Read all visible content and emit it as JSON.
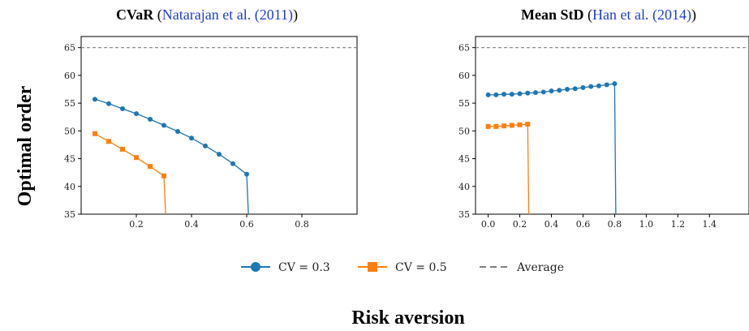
{
  "figure": {
    "ylabel": "Optimal order",
    "xlabel": "Risk aversion"
  },
  "legend": {
    "items": [
      {
        "label": "CV = 0.3",
        "color": "#1f77b4",
        "marker": "circle",
        "style": "solid"
      },
      {
        "label": "CV = 0.5",
        "color": "#ff7f0e",
        "marker": "square",
        "style": "solid"
      },
      {
        "label": "Average",
        "color": "#808080",
        "marker": "none",
        "style": "dashed"
      }
    ]
  },
  "chart_data": [
    {
      "type": "line",
      "title_bold": "CVaR",
      "title_cite_open": "(",
      "title_cite": "Natarajan et al. (2011)",
      "title_cite_close": ")",
      "xlim": [
        0.0,
        1.0
      ],
      "ylim": [
        35,
        67
      ],
      "xticks": [
        0.2,
        0.4,
        0.6,
        0.8
      ],
      "xtick_labels": [
        "0.2",
        "0.4",
        "0.6",
        "0.8"
      ],
      "yticks": [
        35,
        40,
        45,
        50,
        55,
        60,
        65
      ],
      "ytick_labels": [
        "35",
        "40",
        "45",
        "50",
        "55",
        "60",
        "65"
      ],
      "reference_line": {
        "name": "Average",
        "y": 65
      },
      "series": [
        {
          "name": "CV = 0.3",
          "color": "#1f77b4",
          "marker": "circle",
          "x": [
            0.05,
            0.1,
            0.15,
            0.2,
            0.25,
            0.3,
            0.35,
            0.4,
            0.45,
            0.5,
            0.55,
            0.6
          ],
          "y": [
            55.7,
            54.9,
            54.0,
            53.1,
            52.1,
            51.0,
            49.9,
            48.7,
            47.3,
            45.8,
            44.1,
            42.2
          ],
          "drop_to": 35
        },
        {
          "name": "CV = 0.5",
          "color": "#ff7f0e",
          "marker": "square",
          "x": [
            0.05,
            0.1,
            0.15,
            0.2,
            0.25,
            0.3
          ],
          "y": [
            49.5,
            48.1,
            46.7,
            45.2,
            43.6,
            41.9
          ],
          "drop_to": 35
        }
      ]
    },
    {
      "type": "line",
      "title_bold": "Mean StD",
      "title_cite_open": "(",
      "title_cite": "Han et al. (2014)",
      "title_cite_close": ")",
      "xlim": [
        -0.08,
        1.65
      ],
      "ylim": [
        35,
        67
      ],
      "xticks": [
        0.0,
        0.2,
        0.4,
        0.6,
        0.8,
        1.0,
        1.2,
        1.4
      ],
      "xtick_labels": [
        "0.0",
        "0.2",
        "0.4",
        "0.6",
        "0.8",
        "1.0",
        "1.2",
        "1.4"
      ],
      "yticks": [
        35,
        40,
        45,
        50,
        55,
        60,
        65
      ],
      "ytick_labels": [
        "35",
        "40",
        "45",
        "50",
        "55",
        "60",
        "65"
      ],
      "reference_line": {
        "name": "Average",
        "y": 65
      },
      "series": [
        {
          "name": "CV = 0.3",
          "color": "#1f77b4",
          "marker": "circle",
          "x": [
            0.0,
            0.05,
            0.1,
            0.15,
            0.2,
            0.25,
            0.3,
            0.35,
            0.4,
            0.45,
            0.5,
            0.55,
            0.6,
            0.65,
            0.7,
            0.75,
            0.8
          ],
          "y": [
            56.5,
            56.5,
            56.6,
            56.6,
            56.7,
            56.8,
            56.9,
            57.0,
            57.2,
            57.3,
            57.5,
            57.6,
            57.8,
            58.0,
            58.1,
            58.3,
            58.5
          ],
          "drop_to": 35
        },
        {
          "name": "CV = 0.5",
          "color": "#ff7f0e",
          "marker": "square",
          "x": [
            0.0,
            0.05,
            0.1,
            0.15,
            0.2,
            0.25
          ],
          "y": [
            50.8,
            50.8,
            50.9,
            51.0,
            51.1,
            51.2
          ],
          "drop_to": 35
        }
      ]
    }
  ]
}
